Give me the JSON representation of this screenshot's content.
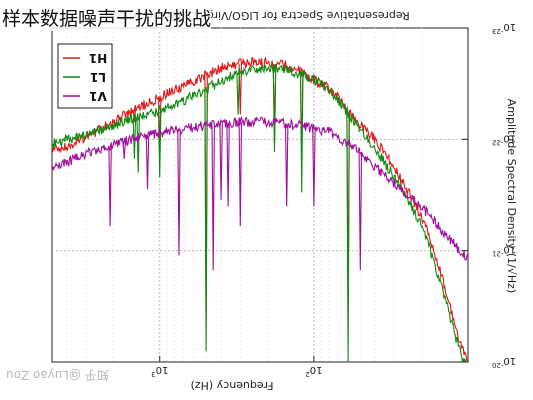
{
  "header": {
    "title": "样本数据噪声干扰的挑战"
  },
  "watermark": "知乎 @Luyao Zou",
  "chart_data": {
    "type": "line",
    "title": "Representative Spectra for LIGO/Virgo Detectors in O3",
    "xlabel": "Frequency (Hz)",
    "ylabel": "Amplitude Spectral Density (1/√Hz)",
    "x_scale": "log",
    "y_scale": "log",
    "xlim": [
      10,
      5000
    ],
    "ylim": [
      1e-23,
      1e-20
    ],
    "x_ticks": [
      {
        "value": 100,
        "base": "10",
        "exp": "2"
      },
      {
        "value": 1000,
        "base": "10",
        "exp": "3"
      }
    ],
    "y_ticks": [
      {
        "value": 1e-23,
        "base": "10",
        "exp": "-23"
      },
      {
        "value": 1e-22,
        "base": "10",
        "exp": "-22"
      },
      {
        "value": 1e-21,
        "base": "10",
        "exp": "-21"
      },
      {
        "value": 1e-20,
        "base": "10",
        "exp": "-20"
      }
    ],
    "grid": true,
    "legend_position": "top-right",
    "orientation": "rotated-180",
    "series": [
      {
        "name": "H1",
        "color": "#e01818",
        "points": [
          [
            10,
            1.05e-20
          ],
          [
            12,
            5e-21
          ],
          [
            15,
            1.6e-21
          ],
          [
            18,
            7e-22
          ],
          [
            20,
            5e-22
          ],
          [
            25,
            2.8e-22
          ],
          [
            30,
            1.8e-22
          ],
          [
            40,
            1e-22
          ],
          [
            50,
            7.5e-23
          ],
          [
            60,
            5.5e-23
          ],
          [
            70,
            4.2e-23
          ],
          [
            80,
            3.5e-23
          ],
          [
            100,
            2.9e-23
          ],
          [
            120,
            2.5e-23
          ],
          [
            150,
            2.2e-23
          ],
          [
            200,
            2.05e-23
          ],
          [
            250,
            2.05e-23
          ],
          [
            300,
            2.1e-23
          ],
          [
            400,
            2.3e-23
          ],
          [
            600,
            3e-23
          ],
          [
            800,
            3.6e-23
          ],
          [
            1000,
            4.2e-23
          ],
          [
            1500,
            5.5e-23
          ],
          [
            2000,
            7e-23
          ],
          [
            3000,
            9.5e-23
          ],
          [
            4000,
            1.15e-22
          ],
          [
            5000,
            1.25e-22
          ]
        ],
        "peaks": [
          [
            60,
            4e-21
          ],
          [
            120,
            1.5e-22
          ],
          [
            180,
            1.1e-22
          ],
          [
            300,
            6e-23
          ],
          [
            500,
            5e-21
          ],
          [
            1000,
            1.2e-22
          ],
          [
            1460,
            7e-23
          ]
        ]
      },
      {
        "name": "L1",
        "color": "#108a10",
        "points": [
          [
            10,
            1.25e-20
          ],
          [
            12,
            6e-21
          ],
          [
            15,
            2e-21
          ],
          [
            18,
            9e-22
          ],
          [
            20,
            6e-22
          ],
          [
            25,
            3.3e-22
          ],
          [
            30,
            2.2e-22
          ],
          [
            40,
            1.2e-22
          ],
          [
            50,
            8e-23
          ],
          [
            60,
            5.8e-23
          ],
          [
            70,
            4.4e-23
          ],
          [
            80,
            3.6e-23
          ],
          [
            100,
            2.9e-23
          ],
          [
            120,
            2.6e-23
          ],
          [
            150,
            2.4e-23
          ],
          [
            200,
            2.3e-23
          ],
          [
            250,
            2.35e-23
          ],
          [
            300,
            2.5e-23
          ],
          [
            400,
            3e-23
          ],
          [
            600,
            4e-23
          ],
          [
            800,
            5e-23
          ],
          [
            1000,
            5.5e-23
          ],
          [
            1500,
            6.5e-23
          ],
          [
            2000,
            7.5e-23
          ],
          [
            3000,
            9e-23
          ],
          [
            4000,
            1e-22
          ],
          [
            5000,
            1.1e-22
          ]
        ],
        "peaks": [
          [
            60,
            1e-20
          ],
          [
            120,
            3e-22
          ],
          [
            180,
            1.3e-22
          ],
          [
            310,
            6e-23
          ],
          [
            500,
            8e-21
          ],
          [
            1000,
            2.2e-22
          ],
          [
            1380,
            2e-22
          ],
          [
            1460,
            1.5e-22
          ]
        ]
      },
      {
        "name": "V1",
        "color": "#a0109c",
        "points": [
          [
            10,
            1.2e-21
          ],
          [
            15,
            6.5e-22
          ],
          [
            20,
            4e-22
          ],
          [
            30,
            2.5e-22
          ],
          [
            40,
            1.8e-22
          ],
          [
            50,
            1.3e-22
          ],
          [
            60,
            1.1e-22
          ],
          [
            70,
            9.5e-23
          ],
          [
            80,
            8.5e-23
          ],
          [
            100,
            8e-23
          ],
          [
            120,
            7.5e-23
          ],
          [
            150,
            7.2e-23
          ],
          [
            200,
            7e-23
          ],
          [
            250,
            7e-23
          ],
          [
            300,
            7e-23
          ],
          [
            400,
            7.3e-23
          ],
          [
            600,
            7.8e-23
          ],
          [
            800,
            8.2e-23
          ],
          [
            1000,
            8.8e-23
          ],
          [
            1500,
            1e-22
          ],
          [
            2000,
            1.12e-22
          ],
          [
            3000,
            1.35e-22
          ],
          [
            4000,
            1.6e-22
          ],
          [
            5000,
            1.8e-22
          ]
        ],
        "peaks": [
          [
            50,
            1.5e-21
          ],
          [
            100,
            4e-22
          ],
          [
            150,
            4e-22
          ],
          [
            300,
            6e-22
          ],
          [
            360,
            4e-22
          ],
          [
            400,
            3.5e-22
          ],
          [
            450,
            1.5e-21
          ],
          [
            750,
            1.1e-21
          ],
          [
            1200,
            2.8e-22
          ],
          [
            1700,
            1.5e-22
          ],
          [
            2100,
            6e-22
          ]
        ]
      }
    ]
  }
}
